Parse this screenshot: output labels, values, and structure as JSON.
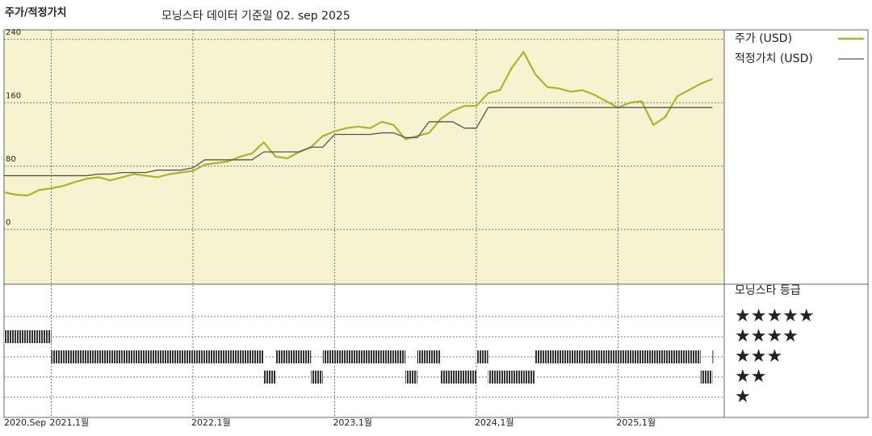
{
  "chart_data": [
    {
      "type": "line",
      "title": "주가/적정가치",
      "subtitle": "모닝스타 데이터 기준일 02. sep 2025",
      "x": [
        "2020-09",
        "2020-10",
        "2020-11",
        "2020-12",
        "2021-01",
        "2021-02",
        "2021-03",
        "2021-04",
        "2021-05",
        "2021-06",
        "2021-07",
        "2021-08",
        "2021-09",
        "2021-10",
        "2021-11",
        "2021-12",
        "2022-01",
        "2022-02",
        "2022-03",
        "2022-04",
        "2022-05",
        "2022-06",
        "2022-07",
        "2022-08",
        "2022-09",
        "2022-10",
        "2022-11",
        "2022-12",
        "2023-01",
        "2023-02",
        "2023-03",
        "2023-04",
        "2023-05",
        "2023-06",
        "2023-07",
        "2023-08",
        "2023-09",
        "2023-10",
        "2023-11",
        "2023-12",
        "2024-01",
        "2024-02",
        "2024-03",
        "2024-04",
        "2024-05",
        "2024-06",
        "2024-07",
        "2024-08",
        "2024-09",
        "2024-10",
        "2024-11",
        "2024-12",
        "2025-01",
        "2025-02",
        "2025-03",
        "2025-04",
        "2025-05",
        "2025-06",
        "2025-07",
        "2025-08",
        "2025-09"
      ],
      "series": [
        {
          "name": "주가 (USD)",
          "color": "#a9b52e",
          "values": [
            47,
            44,
            43,
            50,
            52,
            55,
            60,
            64,
            66,
            62,
            66,
            70,
            68,
            66,
            70,
            72,
            74,
            82,
            84,
            86,
            92,
            96,
            110,
            92,
            90,
            98,
            104,
            118,
            124,
            128,
            130,
            128,
            136,
            132,
            114,
            118,
            122,
            140,
            150,
            156,
            156,
            172,
            176,
            204,
            224,
            196,
            180,
            178,
            174,
            176,
            170,
            162,
            154,
            160,
            162,
            132,
            142,
            168,
            176,
            184,
            190
          ]
        },
        {
          "name": "적정가치 (USD)",
          "color": "#555555",
          "values": [
            68,
            68,
            68,
            68,
            68,
            68,
            68,
            68,
            70,
            70,
            72,
            72,
            72,
            75,
            75,
            75,
            78,
            88,
            88,
            88,
            88,
            88,
            98,
            98,
            98,
            98,
            104,
            104,
            120,
            120,
            120,
            120,
            122,
            122,
            116,
            116,
            136,
            136,
            136,
            128,
            128,
            154,
            154,
            154,
            154,
            154,
            154,
            154,
            154,
            154,
            154,
            154,
            154,
            154,
            154,
            154,
            154,
            154,
            154,
            154,
            154
          ]
        }
      ],
      "xlim": [
        "2020-09",
        "2025-10"
      ],
      "xticks": [
        {
          "value": "2020-09",
          "label": "2020,Sep"
        },
        {
          "value": "2021-01",
          "label": "2021,1월"
        },
        {
          "value": "2022-01",
          "label": "2022,1월"
        },
        {
          "value": "2023-01",
          "label": "2023,1월"
        },
        {
          "value": "2024-01",
          "label": "2024,1월"
        },
        {
          "value": "2025-01",
          "label": "2025,1월"
        }
      ],
      "ylim": [
        -69,
        252
      ],
      "yticks": [
        0,
        80,
        160,
        240
      ],
      "grid": true
    },
    {
      "type": "rating",
      "title": "모닝스타 등급",
      "x": [
        "2020-09",
        "2020-10",
        "2020-11",
        "2020-12",
        "2021-01",
        "2021-02",
        "2021-03",
        "2021-04",
        "2021-05",
        "2021-06",
        "2021-07",
        "2021-08",
        "2021-09",
        "2021-10",
        "2021-11",
        "2021-12",
        "2022-01",
        "2022-02",
        "2022-03",
        "2022-04",
        "2022-05",
        "2022-06",
        "2022-07",
        "2022-08",
        "2022-09",
        "2022-10",
        "2022-11",
        "2022-12",
        "2023-01",
        "2023-02",
        "2023-03",
        "2023-04",
        "2023-05",
        "2023-06",
        "2023-07",
        "2023-08",
        "2023-09",
        "2023-10",
        "2023-11",
        "2023-12",
        "2024-01",
        "2024-02",
        "2024-03",
        "2024-04",
        "2024-05",
        "2024-06",
        "2024-07",
        "2024-08",
        "2024-09",
        "2024-10",
        "2024-11",
        "2024-12",
        "2025-01",
        "2025-02",
        "2025-03",
        "2025-04",
        "2025-05",
        "2025-06",
        "2025-07",
        "2025-08",
        "2025-09"
      ],
      "values": [
        4,
        4,
        4,
        4,
        3,
        3,
        3,
        3,
        3,
        3,
        3,
        3,
        3,
        3,
        3,
        3,
        3,
        3,
        3,
        3,
        3,
        3,
        2,
        3,
        3,
        3,
        2,
        3,
        3,
        3,
        3,
        3,
        3,
        3,
        2,
        3,
        3,
        2,
        2,
        2,
        3,
        2,
        2,
        2,
        2,
        3,
        3,
        3,
        3,
        3,
        3,
        3,
        3,
        3,
        3,
        3,
        3,
        3,
        3,
        2,
        3
      ],
      "color": "#333333",
      "xlim": [
        "2020-09",
        "2025-10"
      ],
      "ylim": [
        0,
        6.6
      ],
      "yticks": [
        {
          "value": 5,
          "label": "★★★★★"
        },
        {
          "value": 4,
          "label": "★★★★"
        },
        {
          "value": 3,
          "label": "★★★"
        },
        {
          "value": 2,
          "label": "★★"
        },
        {
          "value": 1,
          "label": "★"
        }
      ]
    }
  ]
}
